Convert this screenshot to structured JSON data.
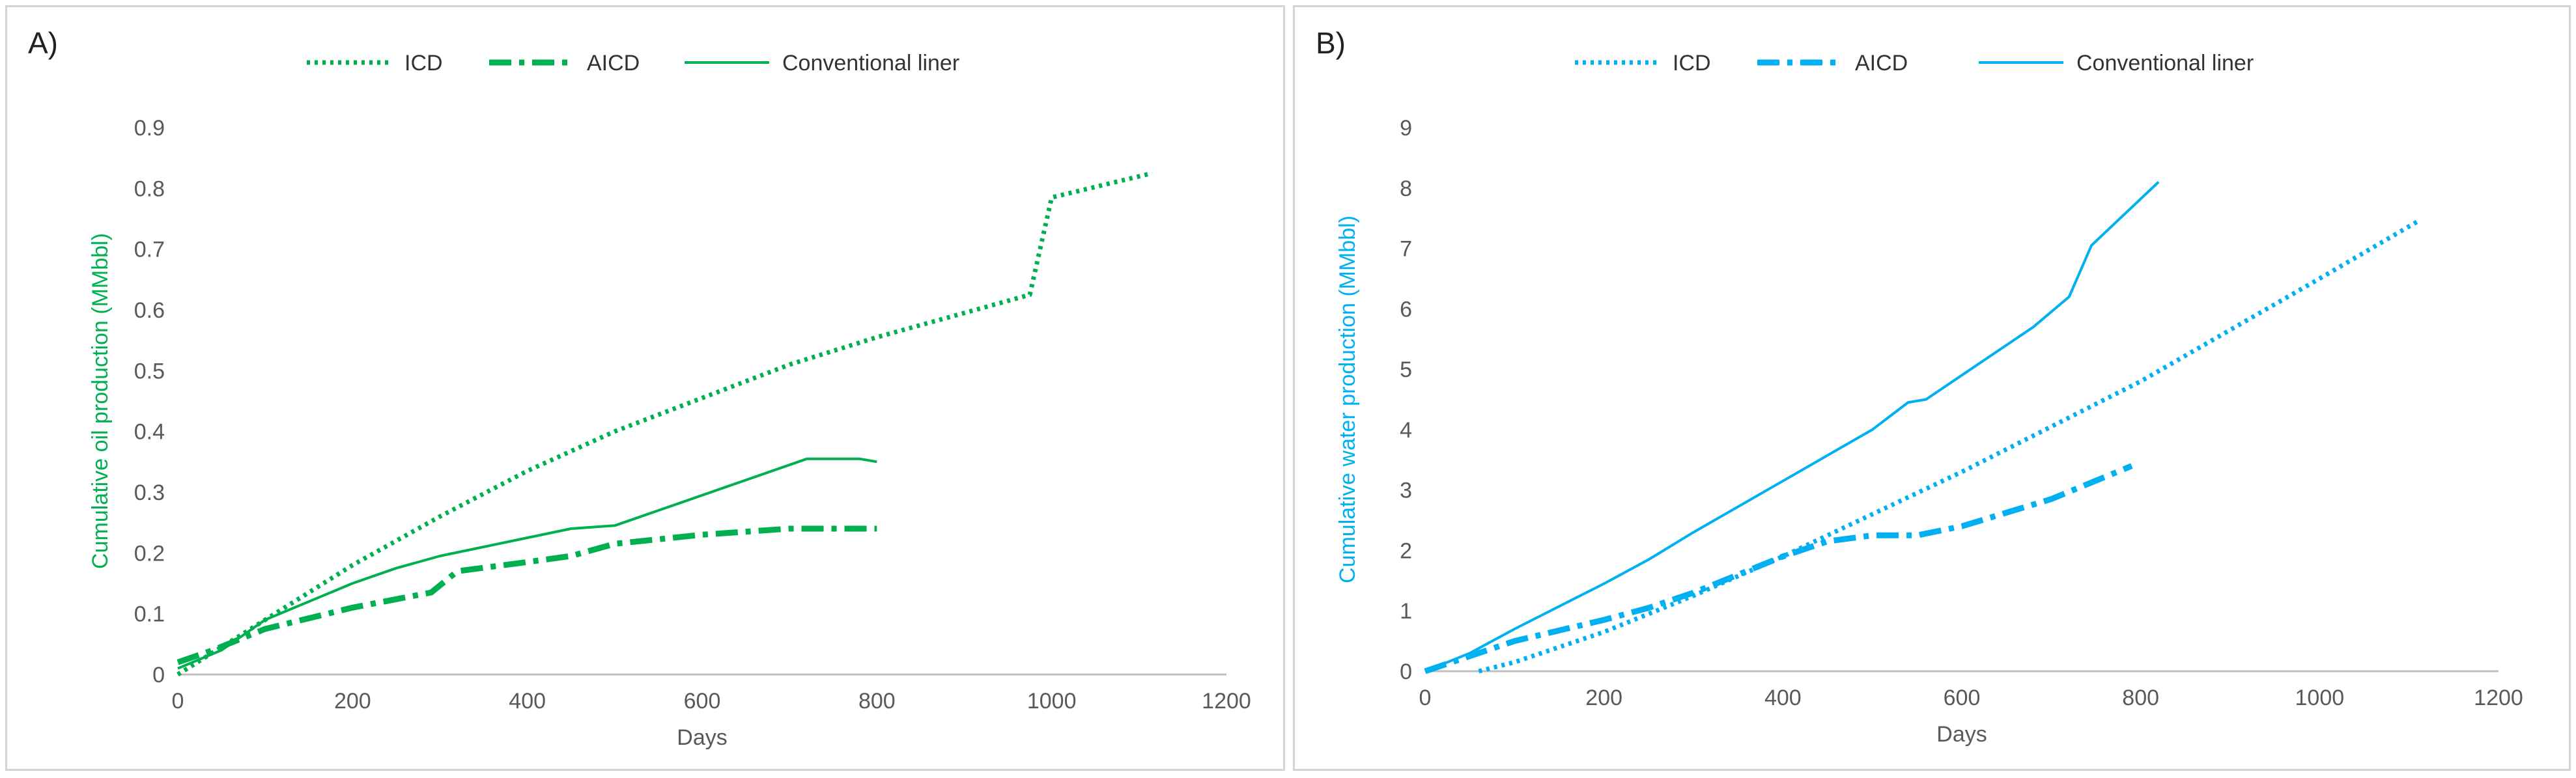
{
  "chart_data": [
    {
      "type": "line",
      "panel_label": "A)",
      "xlabel": "Days",
      "ylabel": "Cumulative oil production (MMbbl)",
      "xlim": [
        0,
        1200
      ],
      "ylim": [
        0,
        0.9
      ],
      "x_ticks": [
        0,
        200,
        400,
        600,
        800,
        1000,
        1200
      ],
      "y_ticks": [
        0,
        0.1,
        0.2,
        0.3,
        0.4,
        0.5,
        0.6,
        0.7,
        0.8,
        0.9
      ],
      "y_tick_labels": [
        "0",
        "0.1",
        "0.2",
        "0.3",
        "0.4",
        "0.5",
        "0.6",
        "0.7",
        "0.8",
        "0.9"
      ],
      "grid": false,
      "legend_position": "top",
      "color": "#00b050",
      "series": [
        {
          "name": "ICD",
          "style": "dotted",
          "points": [
            [
              0,
              0
            ],
            [
              100,
              0.09
            ],
            [
              200,
              0.18
            ],
            [
              300,
              0.26
            ],
            [
              400,
              0.335
            ],
            [
              500,
              0.4
            ],
            [
              600,
              0.455
            ],
            [
              700,
              0.51
            ],
            [
              800,
              0.555
            ],
            [
              900,
              0.595
            ],
            [
              975,
              0.625
            ],
            [
              1000,
              0.785
            ],
            [
              1115,
              0.825
            ]
          ]
        },
        {
          "name": "AICD",
          "style": "dashdot",
          "points": [
            [
              0,
              0.02
            ],
            [
              20,
              0.03
            ],
            [
              40,
              0.04
            ],
            [
              100,
              0.075
            ],
            [
              200,
              0.11
            ],
            [
              290,
              0.135
            ],
            [
              320,
              0.17
            ],
            [
              400,
              0.185
            ],
            [
              450,
              0.195
            ],
            [
              500,
              0.215
            ],
            [
              600,
              0.23
            ],
            [
              700,
              0.24
            ],
            [
              800,
              0.24
            ]
          ]
        },
        {
          "name": "Conventional liner",
          "style": "solid",
          "points": [
            [
              0,
              0.01
            ],
            [
              50,
              0.04
            ],
            [
              100,
              0.09
            ],
            [
              200,
              0.15
            ],
            [
              250,
              0.175
            ],
            [
              300,
              0.195
            ],
            [
              350,
              0.21
            ],
            [
              400,
              0.225
            ],
            [
              450,
              0.24
            ],
            [
              500,
              0.245
            ],
            [
              600,
              0.295
            ],
            [
              720,
              0.355
            ],
            [
              780,
              0.355
            ],
            [
              800,
              0.35
            ]
          ]
        }
      ]
    },
    {
      "type": "line",
      "panel_label": "B)",
      "xlabel": "Days",
      "ylabel": "Cumulative water production (MMbbl)",
      "xlim": [
        0,
        1200
      ],
      "ylim": [
        0,
        9
      ],
      "x_ticks": [
        0,
        200,
        400,
        600,
        800,
        1000,
        1200
      ],
      "y_ticks": [
        0,
        1,
        2,
        3,
        4,
        5,
        6,
        7,
        8,
        9
      ],
      "y_tick_labels": [
        "0",
        "1",
        "2",
        "3",
        "4",
        "5",
        "6",
        "7",
        "8",
        "9"
      ],
      "grid": false,
      "legend_position": "top",
      "color": "#00b0f0",
      "series": [
        {
          "name": "ICD",
          "style": "dotted",
          "points": [
            [
              60,
              0
            ],
            [
              100,
              0.15
            ],
            [
              200,
              0.65
            ],
            [
              300,
              1.25
            ],
            [
              400,
              1.9
            ],
            [
              500,
              2.6
            ],
            [
              600,
              3.3
            ],
            [
              700,
              4.05
            ],
            [
              800,
              4.8
            ],
            [
              900,
              5.65
            ],
            [
              1000,
              6.5
            ],
            [
              1110,
              7.45
            ]
          ]
        },
        {
          "name": "AICD",
          "style": "dashdot",
          "points": [
            [
              0,
              0
            ],
            [
              100,
              0.5
            ],
            [
              200,
              0.85
            ],
            [
              250,
              1.05
            ],
            [
              300,
              1.3
            ],
            [
              350,
              1.6
            ],
            [
              400,
              1.9
            ],
            [
              450,
              2.15
            ],
            [
              500,
              2.25
            ],
            [
              550,
              2.25
            ],
            [
              600,
              2.4
            ],
            [
              700,
              2.85
            ],
            [
              790,
              3.4
            ]
          ]
        },
        {
          "name": "Conventional liner",
          "style": "solid",
          "points": [
            [
              0,
              0
            ],
            [
              50,
              0.3
            ],
            [
              100,
              0.7
            ],
            [
              200,
              1.45
            ],
            [
              250,
              1.85
            ],
            [
              300,
              2.3
            ],
            [
              400,
              3.15
            ],
            [
              500,
              4.0
            ],
            [
              540,
              4.45
            ],
            [
              560,
              4.5
            ],
            [
              620,
              5.1
            ],
            [
              680,
              5.7
            ],
            [
              720,
              6.2
            ],
            [
              745,
              7.05
            ],
            [
              820,
              8.1
            ]
          ]
        }
      ]
    }
  ]
}
